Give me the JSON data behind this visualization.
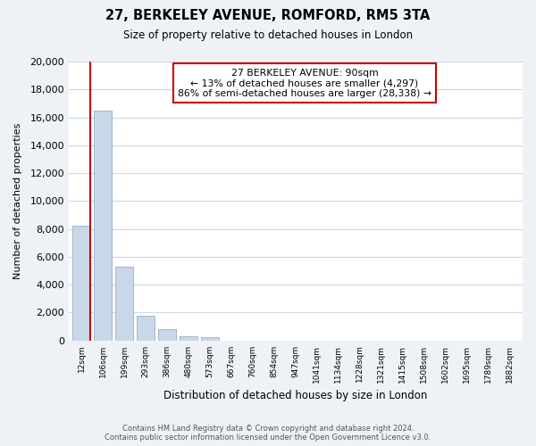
{
  "title": "27, BERKELEY AVENUE, ROMFORD, RM5 3TA",
  "subtitle": "Size of property relative to detached houses in London",
  "xlabel": "Distribution of detached houses by size in London",
  "ylabel": "Number of detached properties",
  "bar_color": "#c8d8e8",
  "bar_edge_color": "#a0b8cc",
  "highlight_bar_edge_color": "#cc0000",
  "bin_labels": [
    "12sqm",
    "106sqm",
    "199sqm",
    "293sqm",
    "386sqm",
    "480sqm",
    "573sqm",
    "667sqm",
    "760sqm",
    "854sqm",
    "947sqm",
    "1041sqm",
    "1134sqm",
    "1228sqm",
    "1321sqm",
    "1415sqm",
    "1508sqm",
    "1602sqm",
    "1695sqm",
    "1789sqm",
    "1882sqm"
  ],
  "bar_heights": [
    8200,
    16500,
    5300,
    1750,
    800,
    280,
    260,
    0,
    0,
    0,
    0,
    0,
    0,
    0,
    0,
    0,
    0,
    0,
    0,
    0,
    0
  ],
  "ylim": [
    0,
    20000
  ],
  "yticks": [
    0,
    2000,
    4000,
    6000,
    8000,
    10000,
    12000,
    14000,
    16000,
    18000,
    20000
  ],
  "annotation_line1": "27 BERKELEY AVENUE: 90sqm",
  "annotation_line2": "← 13% of detached houses are smaller (4,297)",
  "annotation_line3": "86% of semi-detached houses are larger (28,338) →",
  "footer_line1": "Contains HM Land Registry data © Crown copyright and database right 2024.",
  "footer_line2": "Contains public sector information licensed under the Open Government Licence v3.0.",
  "background_color": "#eef2f7",
  "plot_background_color": "#ffffff",
  "grid_color": "#ccd8e8"
}
